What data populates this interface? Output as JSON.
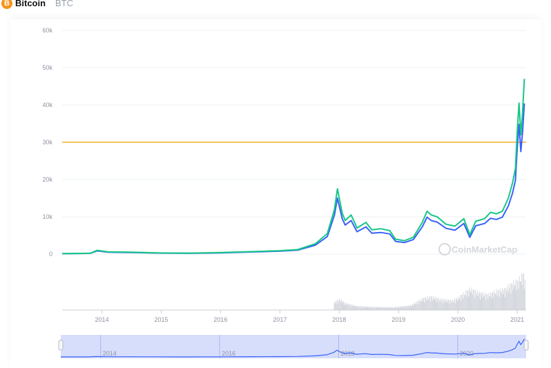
{
  "header": {
    "coin_name": "Bitcoin",
    "coin_symbol": "BTC",
    "coin_icon": "bitcoin-icon",
    "coin_icon_glyph": "B",
    "coin_color": "#f7931a"
  },
  "watermark": "CoinMarketCap",
  "colors": {
    "price": "#16c784",
    "market_cap": "#3861fb",
    "threshold": "#f5c25a",
    "volume": "#d4d7dd",
    "navigator_fill": "#c9d3fb"
  },
  "chart_data": {
    "type": "line",
    "title": "",
    "ylabel": "",
    "xlabel": "",
    "ylim": [
      0,
      60000
    ],
    "xlim": [
      2013.33,
      2021.15
    ],
    "y_ticks": [
      {
        "value": 0,
        "label": "0"
      },
      {
        "value": 10000,
        "label": "10k"
      },
      {
        "value": 20000,
        "label": "20k"
      },
      {
        "value": 30000,
        "label": "30k"
      },
      {
        "value": 40000,
        "label": "40k"
      },
      {
        "value": 50000,
        "label": "50k"
      },
      {
        "value": 60000,
        "label": "60k"
      }
    ],
    "x_ticks": [
      {
        "value": 2014,
        "label": "2014"
      },
      {
        "value": 2015,
        "label": "2015"
      },
      {
        "value": 2016,
        "label": "2016"
      },
      {
        "value": 2017,
        "label": "2017"
      },
      {
        "value": 2018,
        "label": "2018"
      },
      {
        "value": 2019,
        "label": "2019"
      },
      {
        "value": 2020,
        "label": "2020"
      },
      {
        "value": 2021,
        "label": "2021"
      }
    ],
    "threshold_line": 30000,
    "series": [
      {
        "x": [
          2013.33,
          2013.8,
          2013.92,
          2014.1,
          2014.5,
          2015.0,
          2015.5,
          2016.0,
          2016.5,
          2017.0,
          2017.3,
          2017.6,
          2017.8,
          2017.92,
          2017.97,
          2018.05,
          2018.1,
          2018.2,
          2018.3,
          2018.45,
          2018.55,
          2018.7,
          2018.85,
          2018.95,
          2019.1,
          2019.25,
          2019.4,
          2019.48,
          2019.55,
          2019.65,
          2019.8,
          2019.95,
          2020.1,
          2020.2,
          2020.3,
          2020.45,
          2020.55,
          2020.65,
          2020.75,
          2020.85,
          2020.92,
          2020.97,
          2021.0,
          2021.03,
          2021.06,
          2021.09,
          2021.12
        ],
        "values": [
          130,
          200,
          1000,
          600,
          500,
          300,
          250,
          400,
          650,
          900,
          1200,
          2800,
          5500,
          12000,
          17500,
          11000,
          9000,
          10500,
          7000,
          8500,
          6500,
          6800,
          6300,
          4000,
          3600,
          4500,
          8500,
          11500,
          10500,
          10000,
          8000,
          7500,
          9500,
          5200,
          8800,
          9500,
          11200,
          10800,
          11500,
          15000,
          19000,
          23000,
          33000,
          40500,
          32000,
          38000,
          47000
        ]
      },
      {
        "x": [
          2013.33,
          2013.8,
          2013.92,
          2014.1,
          2014.5,
          2015.0,
          2015.5,
          2016.0,
          2016.5,
          2017.0,
          2017.3,
          2017.6,
          2017.8,
          2017.92,
          2017.97,
          2018.05,
          2018.1,
          2018.2,
          2018.3,
          2018.45,
          2018.55,
          2018.7,
          2018.85,
          2018.95,
          2019.1,
          2019.25,
          2019.4,
          2019.48,
          2019.55,
          2019.65,
          2019.8,
          2019.95,
          2020.1,
          2020.2,
          2020.3,
          2020.45,
          2020.55,
          2020.65,
          2020.75,
          2020.85,
          2020.92,
          2020.97,
          2021.0,
          2021.03,
          2021.06,
          2021.09,
          2021.12
        ],
        "values": [
          100,
          180,
          850,
          520,
          430,
          260,
          210,
          340,
          560,
          780,
          1050,
          2400,
          4700,
          10500,
          15000,
          9500,
          7800,
          9000,
          6000,
          7300,
          5600,
          5800,
          5400,
          3400,
          3100,
          3900,
          7300,
          9900,
          9000,
          8600,
          6900,
          6400,
          8200,
          4500,
          7600,
          8200,
          9600,
          9300,
          9900,
          12900,
          16300,
          19800,
          28400,
          34800,
          27500,
          32700,
          40400
        ]
      }
    ],
    "volume": {
      "x": [
        2017.9,
        2018.0,
        2018.1,
        2018.3,
        2018.6,
        2018.9,
        2019.2,
        2019.4,
        2019.55,
        2019.7,
        2019.9,
        2020.0,
        2020.2,
        2020.35,
        2020.5,
        2020.65,
        2020.8,
        2020.92,
        2021.0,
        2021.05,
        2021.1,
        2021.13
      ],
      "values": [
        0.2,
        0.28,
        0.18,
        0.1,
        0.08,
        0.07,
        0.12,
        0.3,
        0.35,
        0.28,
        0.25,
        0.32,
        0.55,
        0.45,
        0.4,
        0.5,
        0.55,
        0.7,
        0.75,
        0.85,
        0.95,
        0.7
      ]
    },
    "navigator": {
      "x_ticks": [
        {
          "value": 2014,
          "label": "2014"
        },
        {
          "value": 2016,
          "label": "2016"
        },
        {
          "value": 2018,
          "label": "2018"
        },
        {
          "value": 2020,
          "label": "2020"
        }
      ]
    }
  }
}
